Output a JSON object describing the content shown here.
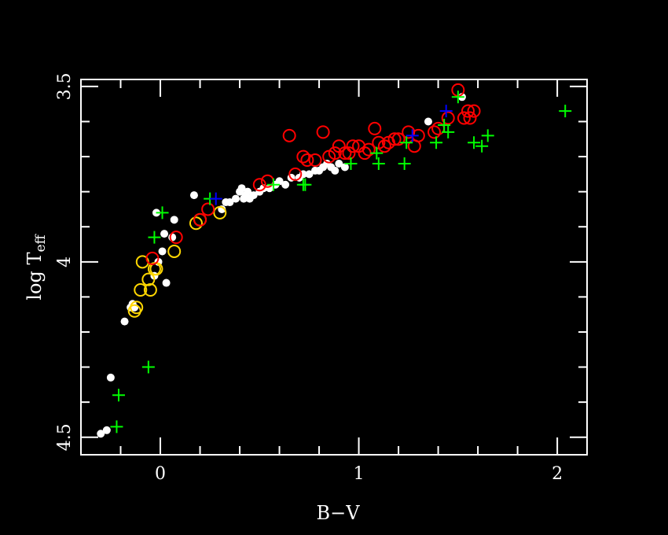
{
  "chart_data": {
    "type": "scatter",
    "title": "",
    "xlabel": "B−V",
    "ylabel_main": "log T",
    "ylabel_sub": "eff",
    "xlim": [
      -0.4,
      2.15
    ],
    "ylim": [
      4.55,
      3.48
    ],
    "y_inverted": true,
    "x_ticks": [
      0,
      1,
      2
    ],
    "x_tick_labels": [
      "0",
      "1",
      "2"
    ],
    "y_ticks": [
      4.5,
      4,
      3.5
    ],
    "y_tick_labels": [
      "4.5",
      "4",
      "3.5"
    ],
    "grid": false,
    "legend": "none",
    "background": "#000000",
    "axis_color": "#ffffff",
    "series": [
      {
        "marker": "filled-circle",
        "color": "#ffffff",
        "x": [
          -0.3,
          -0.27,
          -0.25,
          -0.18,
          -0.15,
          -0.14,
          -0.13,
          -0.03,
          -0.01,
          0.01,
          0.02,
          0.03,
          0.06,
          0.07,
          0.17,
          0.31,
          0.33,
          0.35,
          0.38,
          0.4,
          0.42,
          0.43,
          0.44,
          0.45,
          0.47,
          0.5,
          0.52,
          0.55,
          0.58,
          0.6,
          0.63,
          0.66,
          0.7,
          0.72,
          0.75,
          0.78,
          0.8,
          0.82,
          0.84,
          0.86,
          0.88,
          0.9,
          0.93,
          1.35,
          1.52,
          -0.02,
          0.41
        ],
        "y": [
          4.49,
          4.48,
          4.33,
          4.17,
          4.13,
          4.12,
          4.13,
          4.04,
          4.0,
          3.97,
          3.92,
          4.06,
          3.93,
          3.88,
          3.81,
          3.85,
          3.83,
          3.83,
          3.82,
          3.8,
          3.82,
          3.81,
          3.8,
          3.82,
          3.81,
          3.8,
          3.79,
          3.79,
          3.78,
          3.77,
          3.78,
          3.76,
          3.76,
          3.75,
          3.75,
          3.74,
          3.74,
          3.73,
          3.72,
          3.73,
          3.74,
          3.72,
          3.73,
          3.6,
          3.53,
          3.86,
          3.79
        ]
      },
      {
        "marker": "open-circle",
        "color": "#ffd700",
        "x": [
          -0.13,
          -0.12,
          -0.1,
          -0.09,
          -0.06,
          -0.05,
          -0.03,
          -0.02,
          0.07,
          0.18,
          0.2,
          0.3
        ],
        "y": [
          4.14,
          4.13,
          4.08,
          4.0,
          4.05,
          4.08,
          4.02,
          4.02,
          3.97,
          3.89,
          3.88,
          3.86
        ]
      },
      {
        "marker": "open-circle",
        "color": "#ff0000",
        "x": [
          -0.04,
          0.08,
          0.2,
          0.24,
          0.5,
          0.54,
          0.65,
          0.68,
          0.72,
          0.74,
          0.78,
          0.82,
          0.85,
          0.88,
          0.9,
          0.93,
          0.95,
          0.97,
          1.0,
          1.03,
          1.05,
          1.08,
          1.1,
          1.13,
          1.15,
          1.18,
          1.2,
          1.25,
          1.28,
          1.3,
          1.38,
          1.4,
          1.45,
          1.5,
          1.53,
          1.55,
          1.56,
          1.58
        ],
        "y": [
          3.99,
          3.93,
          3.88,
          3.85,
          3.78,
          3.77,
          3.64,
          3.75,
          3.7,
          3.71,
          3.71,
          3.63,
          3.7,
          3.69,
          3.67,
          3.69,
          3.69,
          3.67,
          3.67,
          3.69,
          3.68,
          3.62,
          3.66,
          3.67,
          3.66,
          3.65,
          3.65,
          3.63,
          3.67,
          3.64,
          3.63,
          3.62,
          3.59,
          3.51,
          3.59,
          3.57,
          3.59,
          3.57
        ]
      },
      {
        "marker": "plus",
        "color": "#00ff00",
        "x": [
          -0.22,
          -0.21,
          -0.06,
          -0.03,
          0.01,
          0.25,
          0.57,
          0.72,
          0.73,
          0.96,
          1.09,
          1.1,
          1.23,
          1.24,
          1.39,
          1.43,
          1.45,
          1.58,
          1.62,
          1.65,
          1.5,
          2.04
        ],
        "y": [
          4.47,
          4.38,
          4.3,
          3.93,
          3.86,
          3.82,
          3.78,
          3.78,
          3.78,
          3.72,
          3.69,
          3.72,
          3.72,
          3.66,
          3.66,
          3.61,
          3.63,
          3.66,
          3.67,
          3.64,
          3.53,
          3.57
        ]
      },
      {
        "marker": "plus",
        "color": "#0000ff",
        "x": [
          0.28,
          1.27,
          1.44
        ],
        "y": [
          3.82,
          3.64,
          3.57
        ]
      }
    ]
  }
}
